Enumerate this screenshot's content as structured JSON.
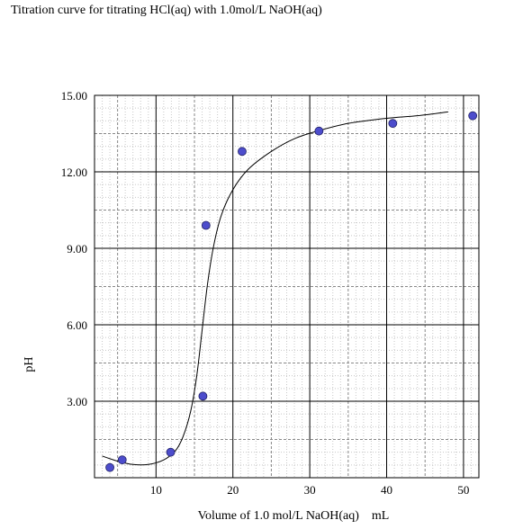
{
  "chart_data": {
    "type": "scatter",
    "title": "Titration curve for titrating HCl(aq) with 1.0mol/L NaOH(aq)",
    "xlabel": "Volume of 1.0 mol/L NaOH(aq)    mL",
    "ylabel": "pH",
    "xlim": [
      2,
      52
    ],
    "ylim": [
      0,
      15
    ],
    "x_ticks": [
      10,
      20,
      30,
      40,
      50
    ],
    "y_ticks": [
      3,
      6,
      9,
      12,
      15
    ],
    "y_tick_labels": [
      "3.00",
      "6.00",
      "9.00",
      "12.00",
      "15.00"
    ],
    "grid": true,
    "point_color": "#4d4dcc",
    "series": [
      {
        "values": [
          {
            "x": 4.0,
            "y": 0.4
          },
          {
            "x": 5.6,
            "y": 0.7
          },
          {
            "x": 11.9,
            "y": 1.0
          },
          {
            "x": 16.1,
            "y": 3.2
          },
          {
            "x": 16.5,
            "y": 9.9
          },
          {
            "x": 21.2,
            "y": 12.8
          },
          {
            "x": 31.2,
            "y": 13.6
          },
          {
            "x": 40.8,
            "y": 13.9
          },
          {
            "x": 51.2,
            "y": 14.2
          }
        ]
      }
    ],
    "fit_curve": [
      {
        "x": 3.0,
        "y": 0.85
      },
      {
        "x": 5.0,
        "y": 0.65
      },
      {
        "x": 7.0,
        "y": 0.52
      },
      {
        "x": 9.0,
        "y": 0.52
      },
      {
        "x": 11.0,
        "y": 0.7
      },
      {
        "x": 12.5,
        "y": 1.05
      },
      {
        "x": 13.5,
        "y": 1.6
      },
      {
        "x": 14.5,
        "y": 2.6
      },
      {
        "x": 15.3,
        "y": 4.0
      },
      {
        "x": 16.0,
        "y": 5.8
      },
      {
        "x": 16.7,
        "y": 7.6
      },
      {
        "x": 17.5,
        "y": 9.1
      },
      {
        "x": 18.5,
        "y": 10.3
      },
      {
        "x": 20.0,
        "y": 11.3
      },
      {
        "x": 22.0,
        "y": 12.1
      },
      {
        "x": 25.0,
        "y": 12.8
      },
      {
        "x": 28.0,
        "y": 13.3
      },
      {
        "x": 31.0,
        "y": 13.6
      },
      {
        "x": 35.0,
        "y": 13.9
      },
      {
        "x": 40.0,
        "y": 14.1
      },
      {
        "x": 44.0,
        "y": 14.2
      },
      {
        "x": 48.0,
        "y": 14.35
      }
    ]
  }
}
